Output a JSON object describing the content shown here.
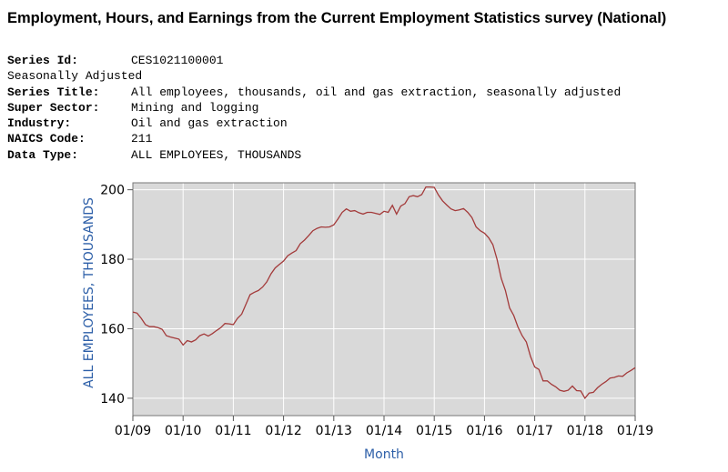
{
  "page": {
    "title": "Employment, Hours, and Earnings from the Current Employment Statistics survey (National)"
  },
  "series_info": [
    {
      "label": "Series Id:",
      "value": "CES1021100001"
    },
    {
      "label": "",
      "value": "Seasonally Adjusted"
    },
    {
      "label": "Series Title:",
      "value": "All employees, thousands, oil and gas extraction, seasonally adjusted"
    },
    {
      "label": "Super Sector:",
      "value": "Mining and logging"
    },
    {
      "label": "Industry:",
      "value": "Oil and gas extraction"
    },
    {
      "label": "NAICS Code:",
      "value": "211"
    },
    {
      "label": "Data Type:",
      "value": "ALL EMPLOYEES, THOUSANDS"
    }
  ],
  "chart_data": {
    "type": "line",
    "xlabel": "Month",
    "ylabel": "ALL EMPLOYEES, THOUSANDS",
    "xlim": [
      "2009-01",
      "2019-01"
    ],
    "ylim": [
      135,
      202
    ],
    "x_ticks": [
      "01/09",
      "01/10",
      "01/11",
      "01/12",
      "01/13",
      "01/14",
      "01/15",
      "01/16",
      "01/17",
      "01/18",
      "01/19"
    ],
    "y_ticks": [
      140,
      160,
      180,
      200
    ],
    "grid": true,
    "colors": {
      "line": "#a33a3a",
      "background": "#d9d9d9",
      "axis_title": "#2d5fa8"
    },
    "series": [
      {
        "x": [
          "2009-01",
          "2009-02",
          "2009-03",
          "2009-04",
          "2009-05",
          "2009-06",
          "2009-07",
          "2009-08",
          "2009-09",
          "2009-10",
          "2009-11",
          "2009-12",
          "2010-01",
          "2010-02",
          "2010-03",
          "2010-04",
          "2010-05",
          "2010-06",
          "2010-07",
          "2010-08",
          "2010-09",
          "2010-10",
          "2010-11",
          "2010-12",
          "2011-01",
          "2011-02",
          "2011-03",
          "2011-04",
          "2011-05",
          "2011-06",
          "2011-07",
          "2011-08",
          "2011-09",
          "2011-10",
          "2011-11",
          "2011-12",
          "2012-01",
          "2012-02",
          "2012-03",
          "2012-04",
          "2012-05",
          "2012-06",
          "2012-07",
          "2012-08",
          "2012-09",
          "2012-10",
          "2012-11",
          "2012-12",
          "2013-01",
          "2013-02",
          "2013-03",
          "2013-04",
          "2013-05",
          "2013-06",
          "2013-07",
          "2013-08",
          "2013-09",
          "2013-10",
          "2013-11",
          "2013-12",
          "2014-01",
          "2014-02",
          "2014-03",
          "2014-04",
          "2014-05",
          "2014-06",
          "2014-07",
          "2014-08",
          "2014-09",
          "2014-10",
          "2014-11",
          "2014-12",
          "2015-01",
          "2015-02",
          "2015-03",
          "2015-04",
          "2015-05",
          "2015-06",
          "2015-07",
          "2015-08",
          "2015-09",
          "2015-10",
          "2015-11",
          "2015-12",
          "2016-01",
          "2016-02",
          "2016-03",
          "2016-04",
          "2016-05",
          "2016-06",
          "2016-07",
          "2016-08",
          "2016-09",
          "2016-10",
          "2016-11",
          "2016-12",
          "2017-01",
          "2017-02",
          "2017-03",
          "2017-04",
          "2017-05",
          "2017-06",
          "2017-07",
          "2017-08",
          "2017-09",
          "2017-10",
          "2017-11",
          "2017-12",
          "2018-01",
          "2018-02",
          "2018-03",
          "2018-04",
          "2018-05",
          "2018-06",
          "2018-07",
          "2018-08",
          "2018-09",
          "2018-10",
          "2018-11",
          "2018-12",
          "2019-01"
        ],
        "values": [
          164.8,
          164.5,
          163.0,
          161.2,
          160.6,
          160.6,
          160.3,
          159.8,
          158.0,
          157.6,
          157.3,
          157.0,
          155.3,
          156.6,
          156.2,
          156.8,
          158.0,
          158.5,
          157.9,
          158.6,
          159.5,
          160.3,
          161.5,
          161.4,
          161.2,
          163.0,
          164.2,
          167.0,
          169.8,
          170.5,
          171.0,
          172.0,
          173.5,
          175.8,
          177.5,
          178.5,
          179.5,
          181.0,
          181.8,
          182.5,
          184.5,
          185.5,
          186.8,
          188.2,
          188.9,
          189.3,
          189.2,
          189.3,
          189.9,
          191.6,
          193.5,
          194.5,
          193.8,
          194.0,
          193.4,
          193.0,
          193.5,
          193.5,
          193.2,
          192.9,
          193.8,
          193.5,
          195.5,
          193.0,
          195.3,
          196.0,
          198.0,
          198.3,
          198.0,
          198.6,
          200.8,
          200.8,
          200.7,
          198.5,
          196.8,
          195.6,
          194.5,
          194.0,
          194.2,
          194.6,
          193.5,
          192.0,
          189.3,
          188.2,
          187.5,
          186.2,
          184.2,
          180.0,
          174.5,
          171.0,
          166.0,
          163.8,
          160.5,
          158.0,
          156.2,
          152.0,
          149.0,
          148.3,
          145.0,
          145.0,
          144.0,
          143.3,
          142.3,
          142.0,
          142.3,
          143.5,
          142.2,
          142.1,
          140.0,
          141.5,
          141.7,
          143.0,
          144.0,
          144.8,
          145.8,
          146.0,
          146.4,
          146.3,
          147.3,
          148.0,
          148.8
        ]
      }
    ]
  }
}
